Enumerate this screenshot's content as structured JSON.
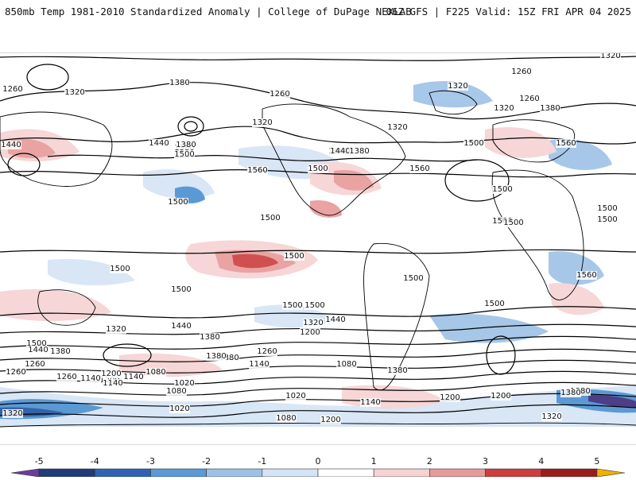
{
  "header": {
    "title": "850mb Temp 1981-2010 Standardized Anomaly | College of DuPage NEXLAB",
    "run_info": "06Z GFS | F225 Valid: 15Z FRI APR 04 2025"
  },
  "map": {
    "projection": "global cylindrical",
    "contour_field": "850mb geopotential height",
    "contour_labels": [
      "1320",
      "1260",
      "1320",
      "1380",
      "1380",
      "1260",
      "1320",
      "1320",
      "1320",
      "1260",
      "1260",
      "1320",
      "1380",
      "1440",
      "1380",
      "1500",
      "1440",
      "1380",
      "1500",
      "1560",
      "1560",
      "1440",
      "1380",
      "1500",
      "1500",
      "1560",
      "1500",
      "1500",
      "1500",
      "1500",
      "1500",
      "1500",
      "1500",
      "1500",
      "1500",
      "1560",
      "1500",
      "1500",
      "1440",
      "1500",
      "1320",
      "1440",
      "1380",
      "1500",
      "1380",
      "1320",
      "1500",
      "1440",
      "1260",
      "1200",
      "1380",
      "1380",
      "1260",
      "1140",
      "1260",
      "1080",
      "1140",
      "1200",
      "1080",
      "1020",
      "1140",
      "1200",
      "1200",
      "1380",
      "1380",
      "1020",
      "1020",
      "1080",
      "1200",
      "1320",
      "1140",
      "1080",
      "1140",
      "1200",
      "1260",
      "1320",
      "1380"
    ],
    "colors": {
      "land_outline": "#000000",
      "contour": "#000000",
      "warm_1": "#f6d2d2",
      "warm_2": "#e79a9a",
      "warm_3": "#cc3d3d",
      "warm_4": "#9b1c1c",
      "cool_1": "#d4e4f4",
      "cool_2": "#9dc2e6",
      "cool_3": "#4a8fd1",
      "cool_4": "#21539e",
      "cool_5": "#3a2a7a"
    }
  },
  "colorbar": {
    "ticks": [
      "-5",
      "-4",
      "-3",
      "-2",
      "-1",
      "0",
      "1",
      "2",
      "3",
      "4",
      "5"
    ],
    "segments": [
      {
        "from": -5.5,
        "to": -5,
        "color": "#6a3d9a"
      },
      {
        "from": -5,
        "to": -4,
        "color": "#203b7a"
      },
      {
        "from": -4,
        "to": -3,
        "color": "#2e62b5"
      },
      {
        "from": -3,
        "to": -2,
        "color": "#5a9ad6"
      },
      {
        "from": -2,
        "to": -1,
        "color": "#9dc2e6"
      },
      {
        "from": -1,
        "to": 0,
        "color": "#d4e4f4"
      },
      {
        "from": 0,
        "to": 1,
        "color": "#ffffff"
      },
      {
        "from": 1,
        "to": 2,
        "color": "#f6d2d2"
      },
      {
        "from": 2,
        "to": 3,
        "color": "#e79a9a"
      },
      {
        "from": 3,
        "to": 4,
        "color": "#cc3d3d"
      },
      {
        "from": 4,
        "to": 5,
        "color": "#9b1c1c"
      },
      {
        "from": 5,
        "to": 5.5,
        "color": "#f0b000"
      }
    ]
  }
}
